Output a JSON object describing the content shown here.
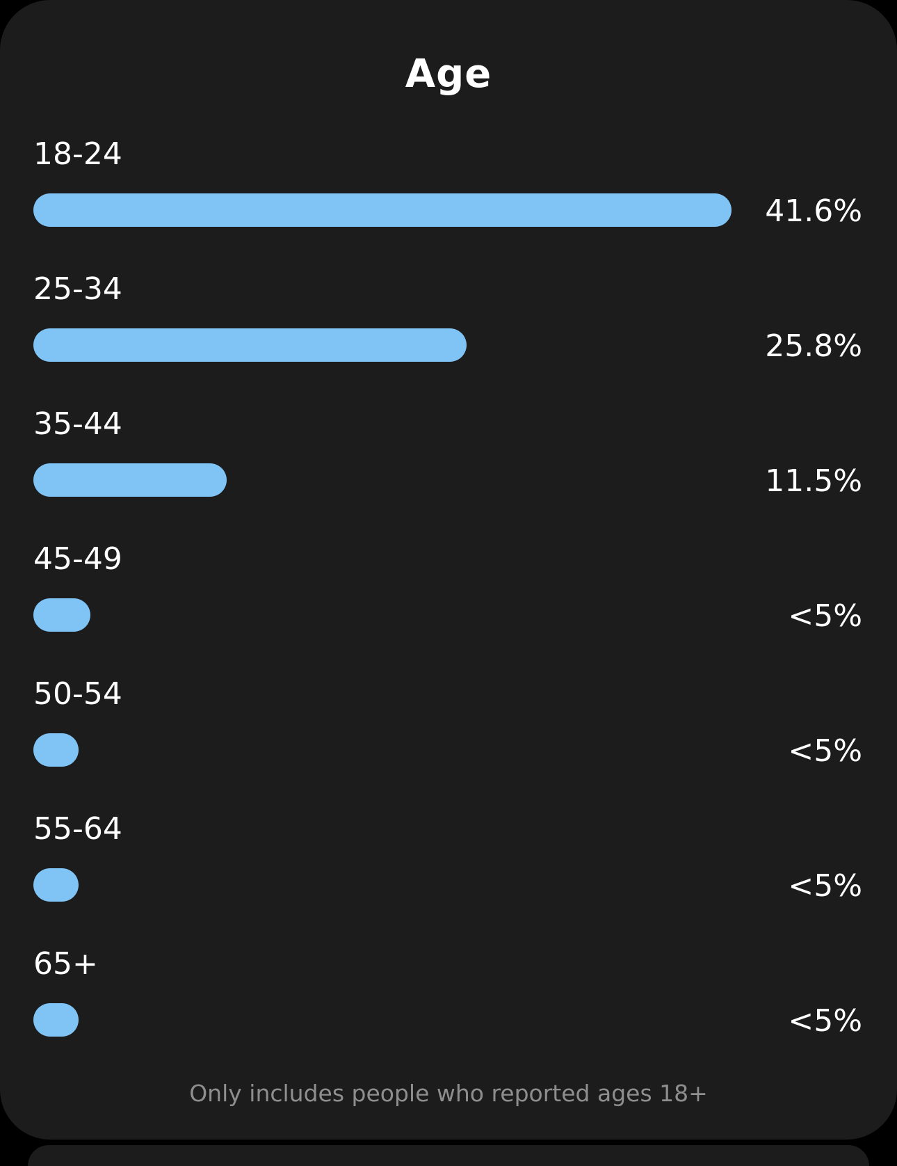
{
  "title": "Age",
  "footnote": "Only includes people who reported ages 18+",
  "colors": {
    "card_background": "#1c1c1d",
    "bar": "#7fc4f5",
    "text": "#ffffff",
    "footnote": "#8e8e8e"
  },
  "chart_data": {
    "type": "bar",
    "orientation": "horizontal",
    "title": "Age",
    "categories": [
      "18-24",
      "25-34",
      "35-44",
      "45-49",
      "50-54",
      "55-64",
      "65+"
    ],
    "value_labels": [
      "41.6%",
      "25.8%",
      "11.5%",
      "<5%",
      "<5%",
      "<5%",
      "<5%"
    ],
    "values": [
      41.6,
      25.8,
      11.5,
      3.4,
      2.7,
      2.7,
      2.7
    ]
  }
}
